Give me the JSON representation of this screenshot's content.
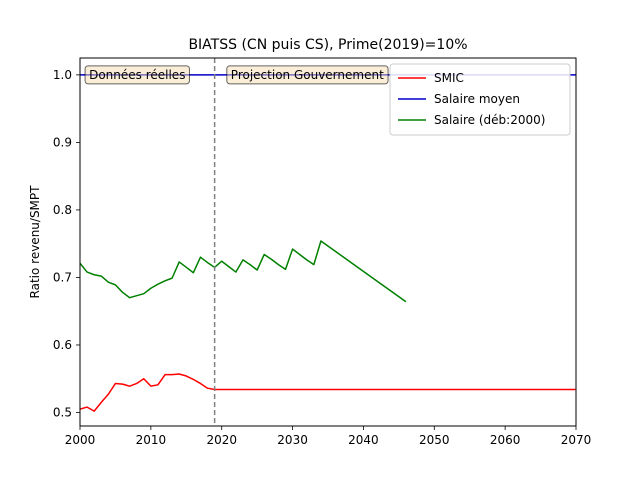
{
  "chart_data": {
    "type": "line",
    "title": "BIATSS (CN puis CS), Prime(2019)=10%",
    "xlabel": "",
    "ylabel": "Ratio revenu/SMPT",
    "xlim": [
      2000,
      2070
    ],
    "ylim": [
      0.48,
      1.025
    ],
    "x_ticks": [
      2000,
      2010,
      2020,
      2030,
      2040,
      2050,
      2060,
      2070
    ],
    "y_ticks": [
      0.5,
      0.6,
      0.7,
      0.8,
      0.9,
      1.0
    ],
    "x_tick_labels": [
      "2000",
      "2010",
      "2020",
      "2030",
      "2040",
      "2050",
      "2060",
      "2070"
    ],
    "y_tick_labels": [
      "0.5",
      "0.6",
      "0.7",
      "0.8",
      "0.9",
      "1.0"
    ],
    "grid": false,
    "legend_position": "top-right",
    "vline": {
      "x": 2019,
      "style": "dashed",
      "color": "#808080"
    },
    "annotations": [
      {
        "text": "Données réelles",
        "x": 2001,
        "y": 1.0
      },
      {
        "text": "Projection Gouvernement",
        "x": 2021,
        "y": 1.0
      }
    ],
    "series": [
      {
        "name": "SMIC",
        "color": "#ff0000",
        "x": [
          2000,
          2001,
          2002,
          2003,
          2004,
          2005,
          2006,
          2007,
          2008,
          2009,
          2010,
          2011,
          2012,
          2013,
          2014,
          2015,
          2016,
          2017,
          2018,
          2019,
          2020,
          2070
        ],
        "y": [
          0.505,
          0.508,
          0.502,
          0.515,
          0.527,
          0.543,
          0.542,
          0.539,
          0.543,
          0.55,
          0.539,
          0.541,
          0.556,
          0.556,
          0.557,
          0.554,
          0.549,
          0.543,
          0.536,
          0.534,
          0.534,
          0.534
        ]
      },
      {
        "name": "Salaire moyen",
        "color": "#0000cc",
        "x": [
          2000,
          2070
        ],
        "y": [
          1.0,
          1.0
        ]
      },
      {
        "name": "Salaire (déb:2000)",
        "color": "#008000",
        "x": [
          2000,
          2001,
          2002,
          2003,
          2004,
          2005,
          2006,
          2007,
          2008,
          2009,
          2010,
          2011,
          2012,
          2013,
          2014,
          2015,
          2016,
          2017,
          2018,
          2019,
          2020,
          2021,
          2022,
          2023,
          2024,
          2025,
          2026,
          2027,
          2028,
          2029,
          2030,
          2031,
          2032,
          2033,
          2034,
          2046
        ],
        "y": [
          0.721,
          0.708,
          0.704,
          0.702,
          0.693,
          0.689,
          0.678,
          0.67,
          0.673,
          0.676,
          0.684,
          0.69,
          0.695,
          0.699,
          0.723,
          0.715,
          0.707,
          0.73,
          0.722,
          0.715,
          0.724,
          0.716,
          0.708,
          0.726,
          0.719,
          0.711,
          0.734,
          0.727,
          0.719,
          0.712,
          0.742,
          0.734,
          0.726,
          0.719,
          0.754,
          0.664
        ]
      }
    ]
  }
}
